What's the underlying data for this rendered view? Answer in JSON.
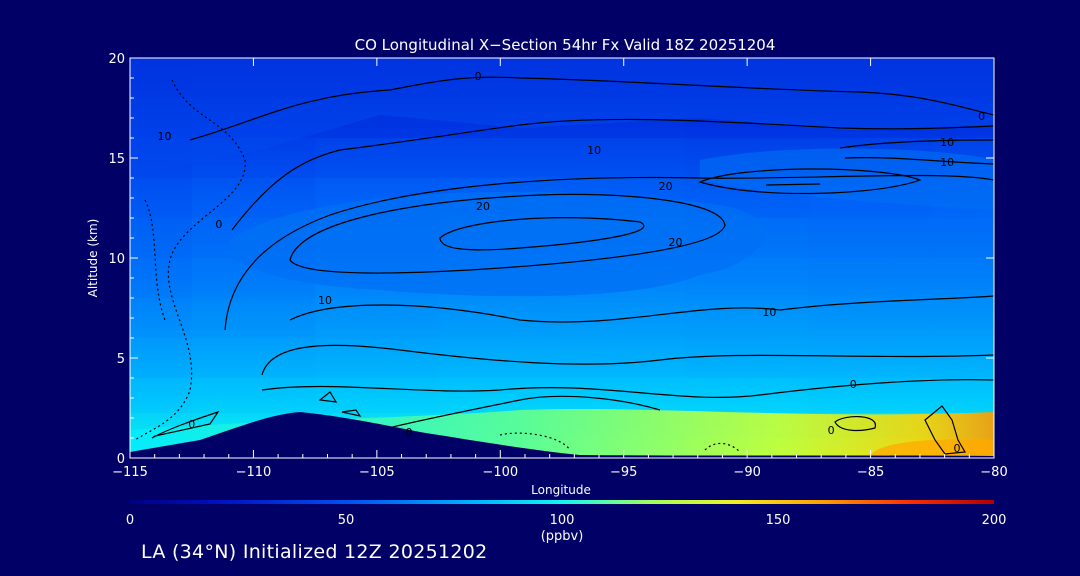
{
  "chart_data": {
    "type": "heatmap",
    "title": "CO Longitudinal X−Section 54hr  Fx Valid 18Z 20251204",
    "xlabel": "Longitude",
    "ylabel": "Altitude (km)",
    "xlim": [
      -115,
      -80
    ],
    "ylim": [
      0,
      20
    ],
    "x_ticks": [
      -115,
      -110,
      -105,
      -100,
      -95,
      -90,
      -85,
      -80
    ],
    "x_tick_labels": [
      "−115",
      "−110",
      "−105",
      "−100",
      "−95",
      "−90",
      "−85",
      "−80"
    ],
    "y_ticks": [
      0,
      5,
      10,
      15,
      20
    ],
    "y_tick_labels": [
      "0",
      "5",
      "10",
      "15",
      "20"
    ],
    "colorbar": {
      "min": 0,
      "max": 200,
      "ticks": [
        0,
        50,
        100,
        150,
        200
      ],
      "tick_labels": [
        "0",
        "50",
        "100",
        "150",
        "200"
      ],
      "label": "(ppbv)",
      "colors": [
        "#000080",
        "#0022dd",
        "#0077ff",
        "#00ccff",
        "#22ffcc",
        "#ccff33",
        "#ffaa00",
        "#ff2200",
        "#cc0000"
      ]
    },
    "field": {
      "description": "approximate CO concentration (ppbv) by altitude band, longitudes -115 to -80 step 5",
      "longitudes": [
        -115,
        -110,
        -105,
        -100,
        -95,
        -90,
        -85,
        -80
      ],
      "altitudes_km": [
        0.5,
        1.5,
        3,
        5,
        7,
        9,
        11,
        13,
        15,
        17,
        19
      ],
      "values": [
        [
          75,
          82,
          86,
          92,
          100,
          110,
          120,
          130
        ],
        [
          70,
          76,
          78,
          80,
          82,
          84,
          86,
          88
        ],
        [
          62,
          68,
          70,
          72,
          72,
          72,
          70,
          70
        ],
        [
          55,
          60,
          64,
          66,
          66,
          64,
          62,
          62
        ],
        [
          50,
          55,
          60,
          63,
          64,
          62,
          60,
          60
        ],
        [
          46,
          52,
          58,
          62,
          62,
          60,
          58,
          58
        ],
        [
          42,
          48,
          56,
          60,
          58,
          56,
          54,
          54
        ],
        [
          38,
          44,
          50,
          52,
          50,
          48,
          50,
          52
        ],
        [
          34,
          38,
          42,
          42,
          42,
          40,
          40,
          42
        ],
        [
          30,
          32,
          32,
          32,
          32,
          30,
          30,
          30
        ],
        [
          24,
          26,
          26,
          26,
          26,
          26,
          26,
          26
        ]
      ]
    },
    "contour_labels": [
      {
        "text": "0",
        "lon": -100.9,
        "alt": 19.1
      },
      {
        "text": "10",
        "lon": -113.6,
        "alt": 16.1
      },
      {
        "text": "10",
        "lon": -96.2,
        "alt": 15.4
      },
      {
        "text": "10",
        "lon": -81.9,
        "alt": 15.8
      },
      {
        "text": "10",
        "lon": -81.9,
        "alt": 14.8
      },
      {
        "text": "0",
        "lon": -80.5,
        "alt": 17.1
      },
      {
        "text": "20",
        "lon": -93.3,
        "alt": 13.6
      },
      {
        "text": "20",
        "lon": -100.7,
        "alt": 12.6
      },
      {
        "text": "20",
        "lon": -92.9,
        "alt": 10.8
      },
      {
        "text": "0",
        "lon": -111.4,
        "alt": 11.7
      },
      {
        "text": "10",
        "lon": -107.1,
        "alt": 7.9
      },
      {
        "text": "10",
        "lon": -89.1,
        "alt": 7.3
      },
      {
        "text": "0",
        "lon": -85.7,
        "alt": 3.7
      },
      {
        "text": "0",
        "lon": -112.5,
        "alt": 1.7
      },
      {
        "text": "0",
        "lon": -103.7,
        "alt": 1.3
      },
      {
        "text": "0",
        "lon": -86.6,
        "alt": 1.4
      },
      {
        "text": "0",
        "lon": -81.5,
        "alt": 0.5
      }
    ]
  },
  "footer": "LA (34°N) Initialized 12Z 20251202"
}
